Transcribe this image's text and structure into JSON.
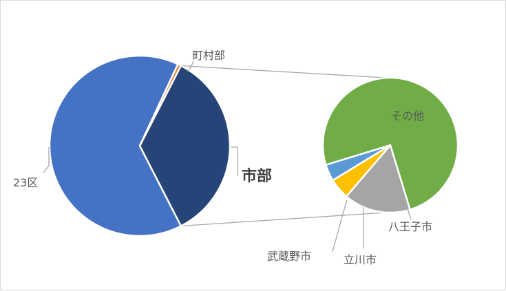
{
  "chart_data": {
    "type": "pie",
    "subtype": "pie-of-pie",
    "primary": {
      "slices": [
        {
          "name": "23区",
          "value": 64.5,
          "color": "#4472c4"
        },
        {
          "name": "町村部",
          "value": 0.6,
          "color": "#ed7d31"
        },
        {
          "name": "市部",
          "value": 34.9,
          "color": "#264478"
        }
      ]
    },
    "secondary": {
      "parent": "市部",
      "slices": [
        {
          "name": "その他",
          "value": 75.0,
          "color": "#70ad47"
        },
        {
          "name": "八王子市",
          "value": 16.0,
          "color": "#a5a5a5"
        },
        {
          "name": "立川市",
          "value": 5.0,
          "color": "#ffc000"
        },
        {
          "name": "武蔵野市",
          "value": 4.0,
          "color": "#5b9bd5"
        }
      ]
    },
    "legend": "none"
  }
}
